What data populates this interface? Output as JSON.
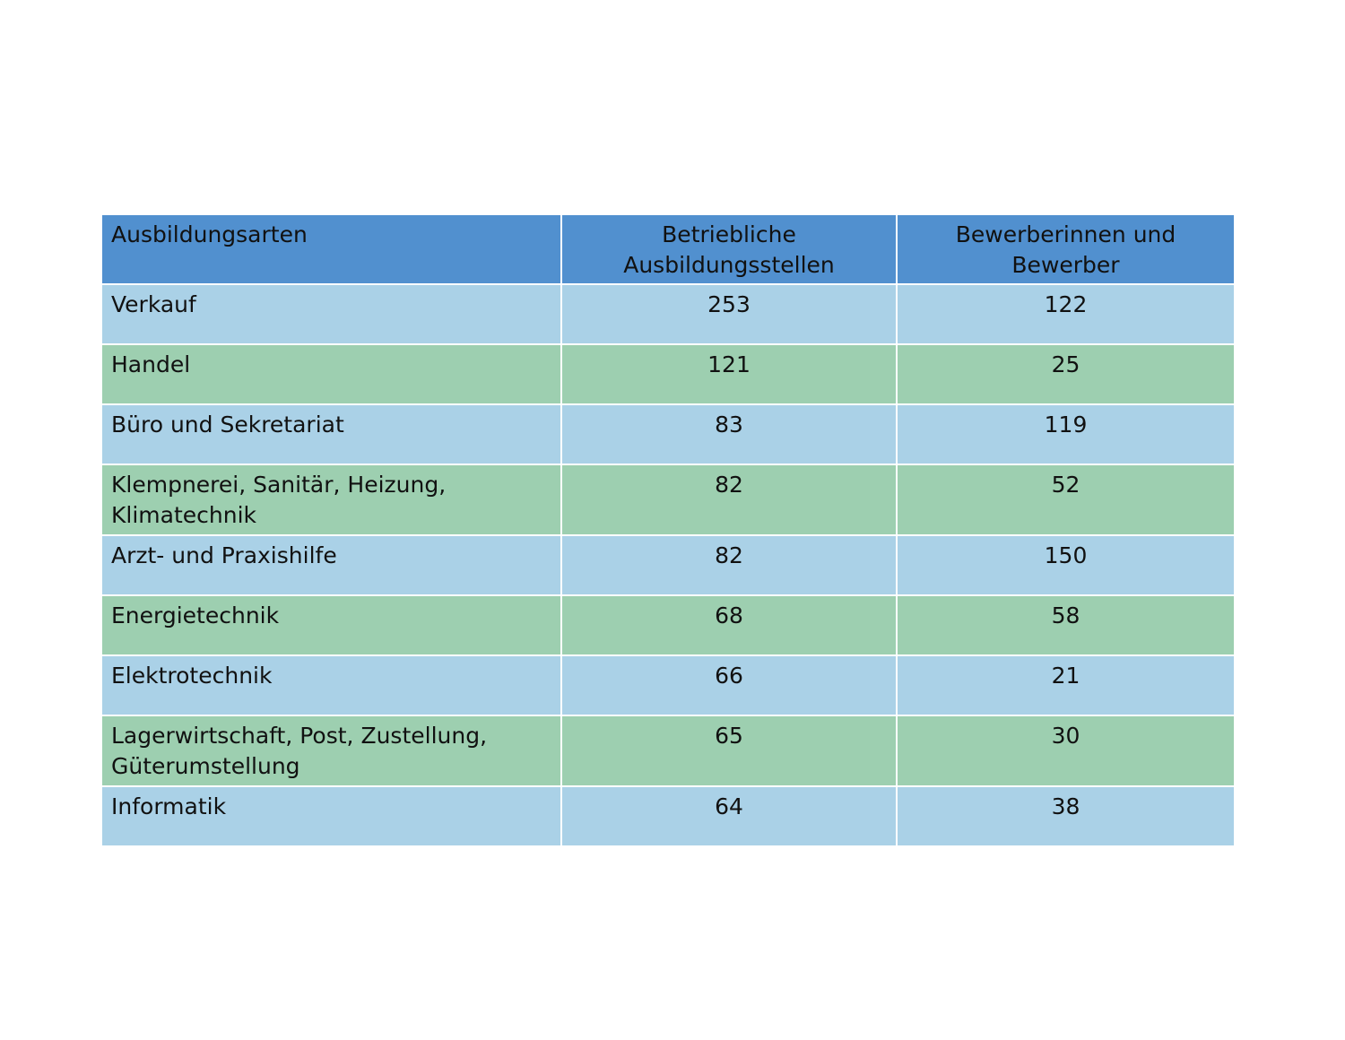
{
  "table": {
    "headers": [
      "Ausbildungsarten",
      "Betriebliche Ausbildungsstellen",
      "Bewerberinnen und Bewerber"
    ],
    "rows": [
      {
        "label": "Verkauf",
        "stellen": "253",
        "bewerber": "122"
      },
      {
        "label": "Handel",
        "stellen": "121",
        "bewerber": "25"
      },
      {
        "label": "Büro und Sekretariat",
        "stellen": "83",
        "bewerber": "119"
      },
      {
        "label": "Klempnerei, Sanitär, Heizung, Klimatechnik",
        "stellen": "82",
        "bewerber": "52"
      },
      {
        "label": "Arzt- und Praxishilfe",
        "stellen": "82",
        "bewerber": "150"
      },
      {
        "label": "Energietechnik",
        "stellen": "68",
        "bewerber": "58"
      },
      {
        "label": "Elektrotechnik",
        "stellen": "66",
        "bewerber": "21"
      },
      {
        "label": "Lagerwirtschaft, Post, Zustellung, Güterumstellung",
        "stellen": "65",
        "bewerber": "30"
      },
      {
        "label": "Informatik",
        "stellen": "64",
        "bewerber": "38"
      }
    ]
  },
  "colors": {
    "header": "#5190cf",
    "row_blue": "#aad1e7",
    "row_green": "#9dcfb0"
  }
}
